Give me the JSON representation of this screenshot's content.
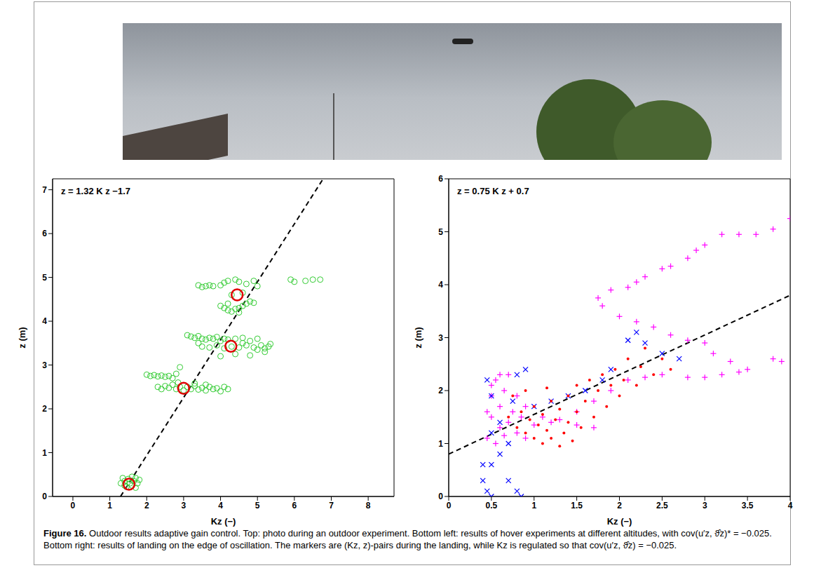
{
  "figure": {
    "label": "Figure 16.",
    "caption": "Outdoor results adaptive gain control. Top: photo during an outdoor experiment. Bottom left: results of hover experiments at different altitudes, with cov(u′z, ϑ̂z)* = −0.025. Bottom right: results of landing on the edge of oscillation. The markers are (Kz, z)-pairs during the landing, while Kz is regulated so that cov(u′z, ϑ̂z) = −0.025."
  },
  "chart_data": [
    {
      "type": "scatter",
      "x_label": "Kz (−)",
      "y_label": "z (m)",
      "annotation": "z = 1.32 K z −1.7",
      "xlim": [
        -0.55,
        8.7
      ],
      "ylim": [
        0,
        7.25
      ],
      "xticks": [
        0,
        1,
        2,
        3,
        4,
        5,
        6,
        7,
        8
      ],
      "yticks": [
        0,
        1,
        2,
        3,
        4,
        5,
        6,
        7
      ],
      "grid": false,
      "fit_line": {
        "line_style": "dashed",
        "x": [
          1.29,
          6.78
        ],
        "y": [
          0,
          7.25
        ]
      },
      "series": [
        {
          "color": "#33cc33",
          "marker": "circle",
          "points": [
            [
              1.3,
              0.3
            ],
            [
              1.35,
              0.42
            ],
            [
              1.4,
              0.35
            ],
            [
              1.45,
              0.22
            ],
            [
              1.5,
              0.4
            ],
            [
              1.55,
              0.3
            ],
            [
              1.6,
              0.25
            ],
            [
              1.65,
              0.35
            ],
            [
              1.7,
              0.42
            ],
            [
              1.75,
              0.3
            ],
            [
              1.8,
              0.38
            ],
            [
              1.4,
              0.25
            ],
            [
              1.6,
              0.45
            ],
            [
              1.7,
              0.2
            ],
            [
              2.0,
              2.78
            ],
            [
              2.1,
              2.75
            ],
            [
              2.2,
              2.77
            ],
            [
              2.3,
              2.74
            ],
            [
              2.4,
              2.76
            ],
            [
              2.5,
              2.73
            ],
            [
              2.6,
              2.75
            ],
            [
              2.7,
              2.7
            ],
            [
              2.8,
              2.8
            ],
            [
              2.9,
              2.95
            ],
            [
              2.85,
              2.6
            ],
            [
              2.3,
              2.5
            ],
            [
              2.4,
              2.45
            ],
            [
              2.5,
              2.52
            ],
            [
              2.6,
              2.48
            ],
            [
              2.7,
              2.55
            ],
            [
              2.8,
              2.45
            ],
            [
              2.9,
              2.5
            ],
            [
              3.0,
              2.42
            ],
            [
              3.1,
              2.5
            ],
            [
              3.2,
              2.45
            ],
            [
              3.3,
              2.52
            ],
            [
              3.4,
              2.44
            ],
            [
              3.5,
              2.48
            ],
            [
              3.6,
              2.42
            ],
            [
              3.7,
              2.5
            ],
            [
              3.8,
              2.45
            ],
            [
              3.9,
              2.47
            ],
            [
              4.0,
              2.4
            ],
            [
              4.1,
              2.5
            ],
            [
              4.2,
              2.45
            ],
            [
              3.3,
              2.58
            ],
            [
              3.6,
              2.55
            ],
            [
              3.1,
              3.68
            ],
            [
              3.2,
              3.65
            ],
            [
              3.3,
              3.62
            ],
            [
              3.4,
              3.66
            ],
            [
              3.5,
              3.6
            ],
            [
              3.6,
              3.58
            ],
            [
              3.7,
              3.62
            ],
            [
              3.8,
              3.6
            ],
            [
              3.9,
              3.64
            ],
            [
              4.0,
              3.55
            ],
            [
              4.1,
              3.6
            ],
            [
              4.2,
              3.58
            ],
            [
              4.4,
              3.6
            ],
            [
              4.6,
              3.62
            ],
            [
              4.8,
              3.55
            ],
            [
              5.0,
              3.6
            ],
            [
              3.5,
              3.42
            ],
            [
              3.7,
              3.4
            ],
            [
              3.9,
              3.45
            ],
            [
              4.1,
              3.38
            ],
            [
              4.3,
              3.42
            ],
            [
              4.5,
              3.4
            ],
            [
              4.7,
              3.45
            ],
            [
              4.9,
              3.4
            ],
            [
              5.0,
              3.35
            ],
            [
              5.1,
              3.45
            ],
            [
              5.2,
              3.38
            ],
            [
              5.3,
              3.42
            ],
            [
              5.35,
              3.48
            ],
            [
              4.0,
              3.2
            ],
            [
              4.4,
              3.25
            ],
            [
              4.8,
              3.22
            ],
            [
              5.2,
              3.3
            ],
            [
              3.4,
              3.5
            ],
            [
              4.6,
              3.5
            ],
            [
              3.4,
              4.82
            ],
            [
              3.5,
              4.78
            ],
            [
              3.6,
              4.8
            ],
            [
              3.7,
              4.82
            ],
            [
              3.8,
              4.8
            ],
            [
              4.0,
              4.82
            ],
            [
              4.1,
              4.88
            ],
            [
              4.2,
              4.92
            ],
            [
              4.4,
              4.95
            ],
            [
              4.5,
              4.9
            ],
            [
              4.7,
              4.85
            ],
            [
              4.9,
              4.92
            ],
            [
              5.0,
              4.8
            ],
            [
              5.9,
              4.95
            ],
            [
              6.0,
              4.9
            ],
            [
              6.3,
              4.92
            ],
            [
              6.5,
              4.95
            ],
            [
              6.7,
              4.95
            ],
            [
              4.0,
              4.35
            ],
            [
              4.1,
              4.3
            ],
            [
              4.2,
              4.25
            ],
            [
              4.3,
              4.22
            ],
            [
              4.4,
              4.28
            ],
            [
              4.5,
              4.3
            ],
            [
              4.6,
              4.35
            ],
            [
              4.7,
              4.4
            ],
            [
              4.8,
              4.45
            ],
            [
              4.9,
              4.42
            ],
            [
              4.2,
              4.4
            ],
            [
              4.5,
              4.2
            ],
            [
              4.3,
              4.6
            ],
            [
              4.6,
              4.65
            ]
          ]
        },
        {
          "color": "#e00000",
          "marker": "ring",
          "points": [
            [
              1.52,
              0.28
            ],
            [
              3.0,
              2.47
            ],
            [
              4.28,
              3.43
            ],
            [
              4.45,
              4.6
            ]
          ]
        }
      ]
    },
    {
      "type": "scatter",
      "x_label": "Kz (−)",
      "y_label": "z (m)",
      "annotation": "z = 0.75 K z + 0.7",
      "xlim": [
        0,
        4
      ],
      "ylim": [
        0,
        6
      ],
      "xticks": [
        0,
        0.5,
        1,
        1.5,
        2,
        2.5,
        3,
        3.5,
        4
      ],
      "yticks": [
        0,
        1,
        2,
        3,
        4,
        5,
        6
      ],
      "grid": false,
      "fit_line": {
        "line_style": "dashed",
        "x": [
          0,
          4
        ],
        "y": [
          0.8,
          3.8
        ]
      },
      "series": [
        {
          "color": "#ff00ff",
          "marker": "plus",
          "points": [
            [
              4.0,
              5.25
            ],
            [
              3.8,
              5.05
            ],
            [
              3.6,
              4.95
            ],
            [
              3.4,
              4.95
            ],
            [
              3.2,
              4.95
            ],
            [
              3.0,
              4.75
            ],
            [
              2.9,
              4.65
            ],
            [
              2.8,
              4.5
            ],
            [
              2.6,
              4.35
            ],
            [
              2.5,
              4.3
            ],
            [
              2.3,
              4.15
            ],
            [
              2.2,
              4.05
            ],
            [
              2.1,
              3.95
            ],
            [
              1.9,
              3.9
            ],
            [
              1.75,
              3.75
            ],
            [
              1.8,
              3.6
            ],
            [
              2.0,
              3.4
            ],
            [
              2.2,
              3.3
            ],
            [
              2.4,
              3.2
            ],
            [
              2.6,
              3.05
            ],
            [
              2.8,
              2.95
            ],
            [
              3.0,
              2.9
            ],
            [
              3.1,
              2.7
            ],
            [
              3.3,
              2.55
            ],
            [
              3.5,
              2.4
            ],
            [
              3.8,
              2.6
            ],
            [
              3.9,
              2.55
            ],
            [
              3.4,
              2.35
            ],
            [
              3.2,
              2.3
            ],
            [
              3.0,
              2.25
            ],
            [
              2.8,
              2.25
            ],
            [
              2.5,
              2.3
            ],
            [
              2.3,
              2.25
            ],
            [
              2.1,
              2.2
            ],
            [
              1.9,
              2.0
            ],
            [
              1.7,
              1.8
            ],
            [
              1.5,
              1.6
            ],
            [
              1.3,
              1.45
            ],
            [
              1.0,
              1.35
            ],
            [
              0.45,
              1.1
            ],
            [
              0.5,
              1.5
            ],
            [
              0.5,
              1.9
            ],
            [
              0.55,
              2.2
            ],
            [
              0.6,
              1.3
            ],
            [
              0.6,
              1.7
            ],
            [
              0.65,
              2.0
            ],
            [
              0.7,
              1.4
            ],
            [
              0.7,
              2.3
            ],
            [
              0.75,
              1.6
            ],
            [
              0.8,
              1.2
            ],
            [
              0.8,
              1.9
            ],
            [
              0.85,
              1.5
            ],
            [
              0.9,
              1.1
            ],
            [
              0.55,
              1.0
            ],
            [
              0.45,
              1.6
            ],
            [
              0.65,
              1.15
            ],
            [
              0.9,
              1.7
            ],
            [
              1.1,
              1.5
            ],
            [
              1.2,
              1.4
            ],
            [
              1.5,
              1.35
            ],
            [
              1.7,
              1.3
            ],
            [
              0.5,
              2.1
            ],
            [
              0.6,
              2.3
            ]
          ]
        },
        {
          "color": "#0000ff",
          "marker": "x",
          "points": [
            [
              2.7,
              2.6
            ],
            [
              2.5,
              2.7
            ],
            [
              2.3,
              2.9
            ],
            [
              2.2,
              3.1
            ],
            [
              2.1,
              2.95
            ],
            [
              1.9,
              2.4
            ],
            [
              1.8,
              2.2
            ],
            [
              1.6,
              2.0
            ],
            [
              1.4,
              1.9
            ],
            [
              1.2,
              1.8
            ],
            [
              1.0,
              1.7
            ],
            [
              0.9,
              2.4
            ],
            [
              0.8,
              2.3
            ],
            [
              0.75,
              1.8
            ],
            [
              0.7,
              1.0
            ],
            [
              0.6,
              0.8
            ],
            [
              0.5,
              0.6
            ],
            [
              0.4,
              0.6
            ],
            [
              0.4,
              0.3
            ],
            [
              0.45,
              0.1
            ],
            [
              0.5,
              0.0
            ],
            [
              0.7,
              0.3
            ],
            [
              0.8,
              0.1
            ],
            [
              0.85,
              0.0
            ],
            [
              0.6,
              1.4
            ],
            [
              0.5,
              1.9
            ],
            [
              0.45,
              2.2
            ],
            [
              0.5,
              1.2
            ]
          ]
        },
        {
          "color": "#ff0000",
          "marker": "dot",
          "points": [
            [
              0.7,
              1.5
            ],
            [
              0.8,
              1.3
            ],
            [
              0.85,
              1.6
            ],
            [
              0.9,
              1.2
            ],
            [
              0.95,
              1.45
            ],
            [
              1.0,
              1.1
            ],
            [
              1.0,
              1.7
            ],
            [
              1.05,
              1.35
            ],
            [
              1.1,
              1.0
            ],
            [
              1.1,
              1.55
            ],
            [
              1.15,
              1.25
            ],
            [
              1.2,
              1.8
            ],
            [
              1.2,
              1.1
            ],
            [
              1.25,
              1.45
            ],
            [
              1.3,
              0.95
            ],
            [
              1.3,
              1.65
            ],
            [
              1.35,
              1.2
            ],
            [
              1.4,
              1.9
            ],
            [
              1.4,
              1.4
            ],
            [
              1.45,
              1.05
            ],
            [
              1.5,
              1.6
            ],
            [
              1.5,
              2.1
            ],
            [
              1.55,
              1.3
            ],
            [
              1.6,
              1.8
            ],
            [
              1.65,
              2.2
            ],
            [
              1.7,
              1.5
            ],
            [
              1.75,
              2.0
            ],
            [
              1.8,
              2.3
            ],
            [
              1.85,
              1.7
            ],
            [
              1.9,
              2.1
            ],
            [
              1.95,
              2.4
            ],
            [
              2.0,
              1.9
            ],
            [
              2.05,
              2.2
            ],
            [
              2.1,
              2.6
            ],
            [
              2.2,
              2.1
            ],
            [
              2.25,
              2.45
            ],
            [
              2.3,
              2.8
            ],
            [
              2.4,
              2.3
            ],
            [
              2.5,
              2.6
            ],
            [
              2.6,
              2.4
            ],
            [
              0.75,
              1.9
            ],
            [
              0.9,
              2.0
            ],
            [
              1.15,
              2.05
            ]
          ]
        }
      ]
    }
  ]
}
